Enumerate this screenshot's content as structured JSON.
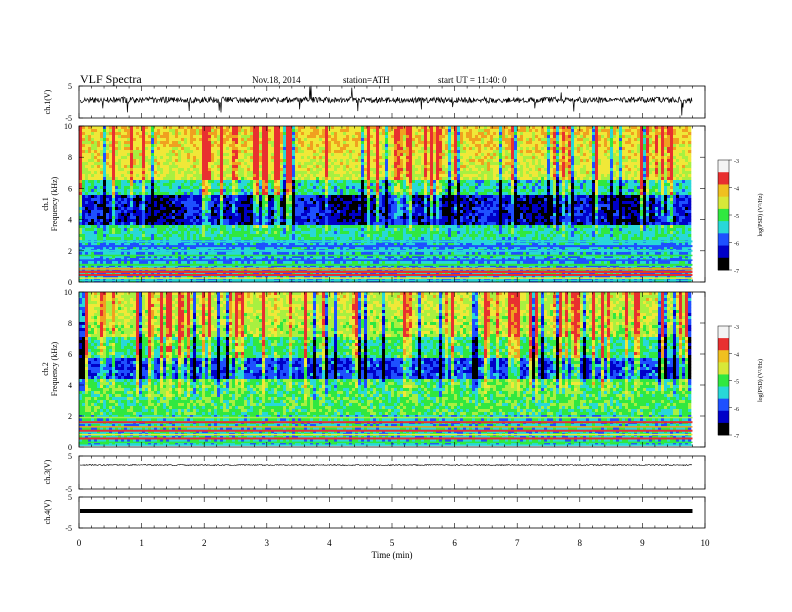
{
  "header": {
    "title": "VLF  Spectra",
    "date": "Nov.18, 2014",
    "station": "station=ATH",
    "start_time": "start  UT  =   11:40: 0"
  },
  "colorbar": {
    "label": "log(PSD) (V²/Hz)",
    "ticks": [
      "-3",
      "-4",
      "-5",
      "-6",
      "-7"
    ],
    "colors": [
      "#f4f4f4",
      "#e83030",
      "#f0c020",
      "#d8e838",
      "#30e840",
      "#28d8d8",
      "#1e50ff",
      "#0000c8",
      "#000000"
    ]
  },
  "chart_data": [
    {
      "type": "line",
      "title": "",
      "ylabel": "ch.1(V)",
      "ylim": [
        -5,
        5
      ],
      "ytick_labels": [
        "5",
        "-5"
      ],
      "trace": "continuous noisy waveform near 0 V with frequent negative spikes reaching about -4 V",
      "mean_value": 0,
      "x_end_min": 9.8
    },
    {
      "type": "heatmap",
      "channel": "ch.1",
      "ylabel": "Frequency (kHz)",
      "ylim": [
        0,
        10
      ],
      "ytick_labels": [
        "10",
        "8",
        "6",
        "4",
        "2",
        "0"
      ],
      "value_label": "log(PSD) (V²/Hz)",
      "value_range": [
        -7,
        -3
      ],
      "bands": [
        {
          "freq_khz": [
            6,
            10
          ],
          "level": "high (-4.5 to -3.5), vertical impulsive streaks"
        },
        {
          "freq_khz": [
            3.5,
            6
          ],
          "level": "low (-6.5 to -6), deep blue background"
        },
        {
          "freq_khz": [
            2.5,
            3.5
          ],
          "level": "medium (-5.5 to -5)"
        },
        {
          "freq_khz": [
            0,
            2.5
          ],
          "level": "horizontal line spectra, strong red lines near 0.5 kHz"
        }
      ],
      "x_end_min": 9.8
    },
    {
      "type": "heatmap",
      "channel": "ch.2",
      "ylabel": "Frequency (kHz)",
      "ylim": [
        0,
        10
      ],
      "ytick_labels": [
        "10",
        "8",
        "6",
        "4",
        "2",
        "0"
      ],
      "value_label": "log(PSD) (V²/Hz)",
      "value_range": [
        -7,
        -3
      ],
      "bands": [
        {
          "freq_khz": [
            7,
            10
          ],
          "level": "medium-high (-5 to -4), vertical impulsive streaks"
        },
        {
          "freq_khz": [
            4,
            7
          ],
          "level": "medium (-5.5 to -5) with blue band near 5 kHz"
        },
        {
          "freq_khz": [
            2,
            4
          ],
          "level": "medium (-5.5 to -5), green"
        },
        {
          "freq_khz": [
            0,
            2
          ],
          "level": "horizontal line spectra, red lines"
        }
      ],
      "x_end_min": 9.8
    },
    {
      "type": "line",
      "ylabel": "ch.3(V)",
      "ylim": [
        -5,
        5
      ],
      "ytick_labels": [
        "5",
        "-5"
      ],
      "trace": "flat line near 0 V with small noise",
      "mean_value": 0,
      "x_end_min": 9.8
    },
    {
      "type": "line",
      "ylabel": "ch.4(V)",
      "ylim": [
        -5,
        5
      ],
      "ytick_labels": [
        "5",
        "-5"
      ],
      "trace": "thick flat line near 0 V",
      "mean_value": 0,
      "x_end_min": 9.8
    }
  ],
  "x_axis": {
    "label": "Time  (min)",
    "xlim": [
      0,
      10
    ],
    "tick_labels": [
      "0",
      "1",
      "2",
      "3",
      "4",
      "5",
      "6",
      "7",
      "8",
      "9",
      "10"
    ],
    "data_end_min": 9.8
  }
}
